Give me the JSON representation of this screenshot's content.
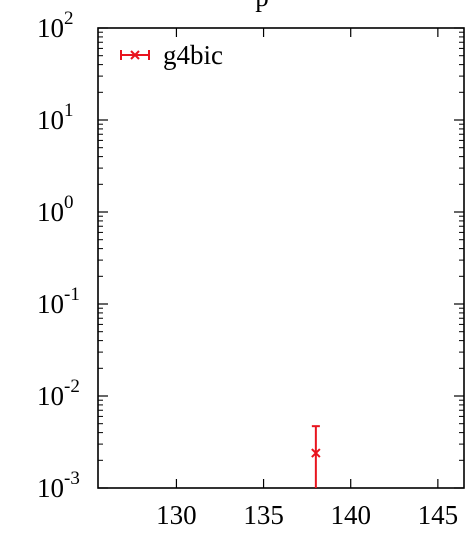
{
  "chart_data": {
    "type": "scatter",
    "title_fragment": "p",
    "xlabel": "",
    "ylabel": "",
    "x_scale": "linear",
    "y_scale": "log",
    "xlim": [
      125.5,
      146.5
    ],
    "ylim": [
      0.001,
      100
    ],
    "x_ticks": [
      130,
      135,
      140,
      145
    ],
    "y_ticks": [
      {
        "base": "10",
        "exp": "-3",
        "value": 0.001
      },
      {
        "base": "10",
        "exp": "-2",
        "value": 0.01
      },
      {
        "base": "10",
        "exp": "-1",
        "value": 0.1
      },
      {
        "base": "10",
        "exp": "0",
        "value": 1
      },
      {
        "base": "10",
        "exp": "1",
        "value": 10
      },
      {
        "base": "10",
        "exp": "2",
        "value": 100
      }
    ],
    "grid": false,
    "legend_position": "top-left",
    "series": [
      {
        "name": "g4bic",
        "color": "#e8141e",
        "marker": "x",
        "points": [
          {
            "x": 138,
            "y": 0.0024,
            "y_low": 0.001,
            "y_high": 0.0047
          }
        ]
      }
    ]
  }
}
